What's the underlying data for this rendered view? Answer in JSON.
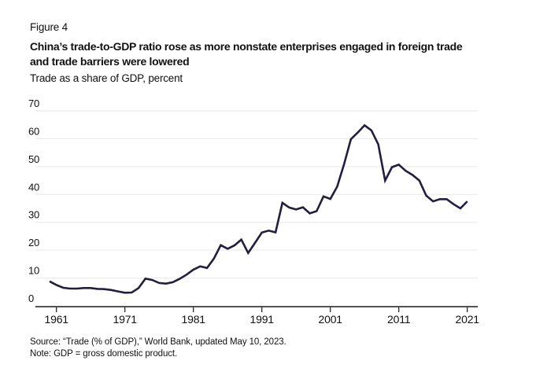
{
  "header": {
    "figure_label": "Figure 4",
    "title_lines": [
      "China’s trade-to-GDP ratio rose as more nonstate enterprises engaged in foreign trade",
      "and trade barriers were lowered"
    ],
    "subtitle": "Trade as a share of GDP, percent"
  },
  "footer": {
    "source": "Source: “Trade (% of GDP),” World Bank, updated May 10, 2023.",
    "note": "Note: GDP = gross domestic product."
  },
  "chart_data": {
    "type": "line",
    "title": "China’s trade-to-GDP ratio rose as more nonstate enterprises engaged in foreign trade and trade barriers were lowered",
    "ylabel": "Trade as a share of GDP, percent",
    "xlabel": "",
    "x": [
      1960,
      1961,
      1962,
      1963,
      1964,
      1965,
      1966,
      1967,
      1968,
      1969,
      1970,
      1971,
      1972,
      1973,
      1974,
      1975,
      1976,
      1977,
      1978,
      1979,
      1980,
      1981,
      1982,
      1983,
      1984,
      1985,
      1986,
      1987,
      1988,
      1989,
      1990,
      1991,
      1992,
      1993,
      1994,
      1995,
      1996,
      1997,
      1998,
      1999,
      2000,
      2001,
      2002,
      2003,
      2004,
      2005,
      2006,
      2007,
      2008,
      2009,
      2010,
      2011,
      2012,
      2013,
      2014,
      2015,
      2016,
      2017,
      2018,
      2019,
      2020,
      2021
    ],
    "series": [
      {
        "name": "Trade as a share of GDP, percent",
        "values": [
          8.8,
          7.5,
          6.5,
          6.2,
          6.2,
          6.4,
          6.4,
          6.1,
          6.0,
          5.7,
          5.2,
          4.7,
          4.8,
          6.4,
          9.8,
          9.3,
          8.2,
          8.0,
          8.5,
          9.7,
          11.2,
          13.0,
          14.2,
          13.6,
          17.0,
          21.8,
          20.5,
          21.7,
          23.8,
          19.0,
          22.6,
          26.3,
          27.0,
          26.4,
          37.0,
          35.3,
          34.6,
          35.4,
          33.2,
          34.0,
          39.3,
          38.4,
          42.8,
          50.8,
          59.8,
          62.2,
          64.8,
          63.0,
          58.0,
          45.0,
          49.8,
          50.7,
          48.5,
          47.0,
          45.0,
          39.6,
          37.5,
          38.3,
          38.3,
          36.5,
          35.0,
          37.5
        ]
      }
    ],
    "xticks": [
      1961,
      1971,
      1981,
      1991,
      2001,
      2011,
      2021
    ],
    "yticks": [
      0,
      10,
      20,
      30,
      40,
      50,
      60,
      70
    ],
    "xlim": [
      1957.9,
      2022.5
    ],
    "ylim": [
      0,
      70
    ],
    "grid": "horizontal-only",
    "legend": "none",
    "line_color": "#221e3f",
    "grid_color": "#e9e7e7",
    "axis_color": "#1a1a1a",
    "text_color": "#111111"
  }
}
